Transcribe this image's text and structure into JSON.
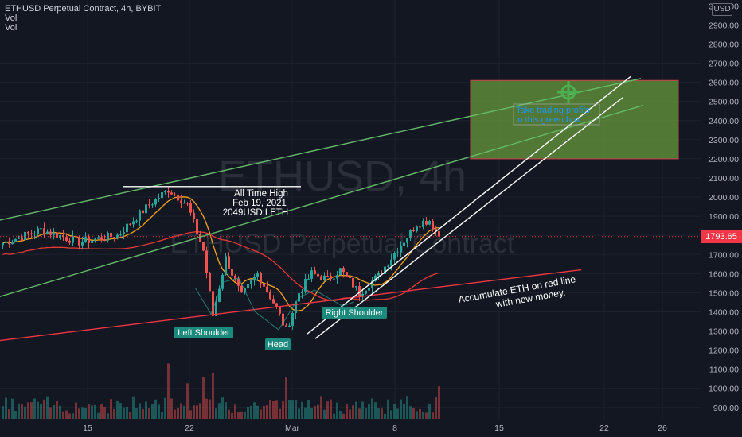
{
  "header": {
    "symbol_line": "ETHUSD Perpetual Contract, 4h, BYBIT",
    "indicator_1": "Vol",
    "indicator_2": "Vol",
    "currency": "USD"
  },
  "watermark": {
    "main": "ETHUSD, 4h",
    "sub": "ETHUSD Perpetual Contract"
  },
  "last_price": "1793.65",
  "colors": {
    "background": "#131722",
    "up": "#26a69a",
    "down": "#ef5350",
    "trend_green": "#66bb6a",
    "support_red": "#f23645",
    "box_fill": "#6a9e3c",
    "box_border": "#d1404b",
    "label_teal": "#1b8a7c"
  },
  "chart_data": {
    "type": "candlestick",
    "x_ticks": [
      "15",
      "22",
      "Mar",
      "8",
      "15",
      "22",
      "26"
    ],
    "y_ticks": [
      "3000.00",
      "2900.00",
      "2800.00",
      "2700.00",
      "2600.00",
      "2500.00",
      "2400.00",
      "2300.00",
      "2200.00",
      "2100.00",
      "2000.00",
      "1900.00",
      "1800.00",
      "1700.00",
      "1600.00",
      "1500.00",
      "1400.00",
      "1300.00",
      "1200.00",
      "1100.00",
      "1000.00",
      "900.00"
    ],
    "ylim": [
      870,
      3010
    ],
    "price_anchors": [
      {
        "bar": 0,
        "price": 1760
      },
      {
        "bar": 12,
        "price": 1830
      },
      {
        "bar": 24,
        "price": 1765
      },
      {
        "bar": 36,
        "price": 1800
      },
      {
        "bar": 46,
        "price": 1960
      },
      {
        "bar": 52,
        "price": 2040
      },
      {
        "bar": 58,
        "price": 1960
      },
      {
        "bar": 63,
        "price": 1720
      },
      {
        "bar": 66,
        "price": 1380
      },
      {
        "bar": 70,
        "price": 1680
      },
      {
        "bar": 75,
        "price": 1480
      },
      {
        "bar": 80,
        "price": 1600
      },
      {
        "bar": 86,
        "price": 1420
      },
      {
        "bar": 89,
        "price": 1300
      },
      {
        "bar": 93,
        "price": 1500
      },
      {
        "bar": 97,
        "price": 1600
      },
      {
        "bar": 102,
        "price": 1570
      },
      {
        "bar": 106,
        "price": 1620
      },
      {
        "bar": 112,
        "price": 1500
      },
      {
        "bar": 118,
        "price": 1590
      },
      {
        "bar": 124,
        "price": 1730
      },
      {
        "bar": 130,
        "price": 1860
      },
      {
        "bar": 134,
        "price": 1880
      },
      {
        "bar": 137,
        "price": 1794
      }
    ],
    "drawings": [
      {
        "name": "upper-channel-line",
        "type": "line",
        "from": [
          0,
          1880
        ],
        "to": [
          805,
          2620
        ]
      },
      {
        "name": "lower-channel-line",
        "type": "line",
        "from": [
          0,
          1480
        ],
        "to": [
          808,
          2480
        ]
      },
      {
        "name": "red-support-line",
        "type": "line",
        "from": [
          0,
          1250
        ],
        "to": [
          730,
          1620
        ]
      },
      {
        "name": "ath-line",
        "type": "hline",
        "from": [
          155,
          2055
        ],
        "to": [
          378,
          2055
        ]
      },
      {
        "name": "white-trend-1",
        "type": "line",
        "from": [
          386,
          1285
        ],
        "to": [
          792,
          2630
        ]
      },
      {
        "name": "white-trend-2",
        "type": "line",
        "from": [
          396,
          1260
        ],
        "to": [
          782,
          2520
        ]
      }
    ],
    "target_box": {
      "price_top": 2610,
      "price_bottom": 2200
    }
  },
  "annotations": {
    "ath_line1": "All Time High",
    "ath_line2": "Feb 19, 2021",
    "ath_line3": "2049USD:LETH",
    "accumulate_line1": "Accumulate ETH on red line",
    "accumulate_line2": "with new money.",
    "take_profit_line1": "Take trading profits",
    "take_profit_line2": "in this green box.",
    "left_shoulder": "Left Shoulder",
    "head": "Head",
    "right_shoulder": "Right Shoulder"
  }
}
